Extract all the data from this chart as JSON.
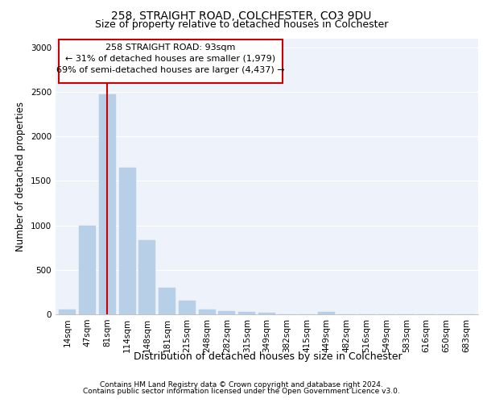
{
  "title1": "258, STRAIGHT ROAD, COLCHESTER, CO3 9DU",
  "title2": "Size of property relative to detached houses in Colchester",
  "xlabel": "Distribution of detached houses by size in Colchester",
  "ylabel": "Number of detached properties",
  "footnote1": "Contains HM Land Registry data © Crown copyright and database right 2024.",
  "footnote2": "Contains public sector information licensed under the Open Government Licence v3.0.",
  "annotation_line1": "258 STRAIGHT ROAD: 93sqm",
  "annotation_line2": "← 31% of detached houses are smaller (1,979)",
  "annotation_line3": "69% of semi-detached houses are larger (4,437) →",
  "bar_labels": [
    "14sqm",
    "47sqm",
    "81sqm",
    "114sqm",
    "148sqm",
    "181sqm",
    "215sqm",
    "248sqm",
    "282sqm",
    "315sqm",
    "349sqm",
    "382sqm",
    "415sqm",
    "449sqm",
    "482sqm",
    "516sqm",
    "549sqm",
    "583sqm",
    "616sqm",
    "650sqm",
    "683sqm"
  ],
  "bar_values": [
    50,
    1000,
    2470,
    1650,
    830,
    300,
    150,
    55,
    40,
    30,
    20,
    0,
    0,
    25,
    0,
    0,
    0,
    0,
    0,
    0,
    0
  ],
  "bar_color": "#b8cfe8",
  "bar_edge_color": "#b8cfe8",
  "red_line_x": 2,
  "marker_line_color": "#cc0000",
  "annotation_box_color": "#cc0000",
  "background_color": "#eef2fa",
  "ylim": [
    0,
    3100
  ],
  "yticks": [
    0,
    500,
    1000,
    1500,
    2000,
    2500,
    3000
  ],
  "grid_color": "#ffffff",
  "title1_fontsize": 10,
  "title2_fontsize": 9,
  "axis_label_fontsize": 8.5,
  "tick_fontsize": 7.5,
  "annotation_fontsize": 8,
  "footnote_fontsize": 6.5
}
